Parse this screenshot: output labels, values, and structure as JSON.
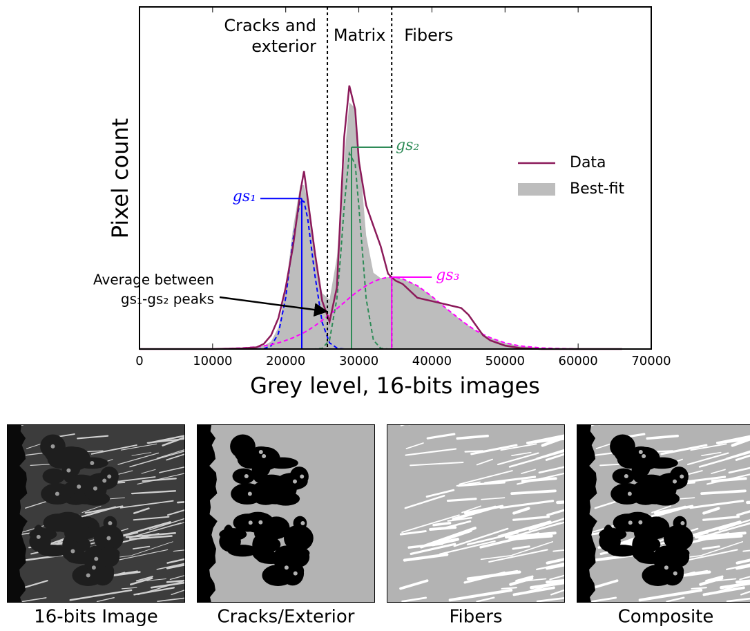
{
  "chart_data": {
    "type": "line",
    "ylabel": "Pixel count",
    "xlabel": "Grey level, 16-bits images",
    "xlim": [
      0,
      70000
    ],
    "xticks": [
      0,
      10000,
      20000,
      30000,
      40000,
      50000,
      60000,
      70000
    ],
    "ylim": [
      0,
      100
    ],
    "legend": "center right",
    "x": [
      0,
      10000,
      14000,
      16000,
      17000,
      18000,
      19000,
      20000,
      21000,
      22000,
      22500,
      23000,
      24000,
      25000,
      26000,
      27000,
      27500,
      28000,
      28700,
      29500,
      30000,
      31000,
      32000,
      33000,
      34000,
      35000,
      36000,
      38000,
      40000,
      42000,
      44000,
      45000,
      46000,
      47000,
      48000,
      50000,
      52000,
      55000,
      60000,
      66000
    ],
    "series": [
      {
        "name": "Data",
        "color": "#8b1a5a",
        "style": "line",
        "values": [
          0,
          0,
          0.2,
          0.5,
          1.5,
          4,
          9,
          18,
          30,
          46,
          52,
          44,
          28,
          14,
          8,
          18,
          40,
          62,
          77,
          70,
          55,
          42,
          36,
          30,
          22,
          20,
          19,
          15,
          14,
          13,
          12,
          10,
          7,
          4,
          2.5,
          1,
          0.3,
          0,
          0,
          0
        ]
      },
      {
        "name": "Best-fit",
        "color": "#bdbdbd",
        "style": "area",
        "values": [
          0,
          0,
          0.3,
          0.6,
          1,
          2.2,
          6.3,
          17.5,
          35.3,
          47.9,
          47.9,
          43.6,
          28.2,
          16.3,
          14.4,
          26.8,
          39.8,
          55.3,
          72.1,
          70.4,
          58.8,
          33.2,
          22.3,
          20.7,
          21,
          21,
          20.5,
          18.5,
          15.4,
          11.8,
          8.4,
          6.8,
          5.4,
          4.3,
          3.3,
          1.8,
          0.9,
          0.3,
          0,
          0
        ]
      },
      {
        "color": "#0000ff",
        "style": "dashed",
        "values": [
          0,
          0,
          0,
          0,
          0.1,
          0.9,
          4.5,
          15,
          32,
          43.6,
          43.1,
          38.2,
          21.4,
          7.7,
          1.8,
          0.3,
          0.1,
          0,
          0,
          0,
          0,
          0,
          0,
          0,
          0,
          0,
          0,
          0,
          0,
          0,
          0,
          0,
          0,
          0,
          0,
          0,
          0,
          0,
          0,
          0
        ]
      },
      {
        "color": "#2e8b57",
        "style": "dashed",
        "values": [
          0,
          0,
          0,
          0,
          0,
          0,
          0,
          0,
          0,
          0,
          0,
          0,
          0,
          0.2,
          2.6,
          14.7,
          27,
          41.7,
          57.2,
          54.1,
          41.7,
          14.7,
          2.6,
          0.2,
          0,
          0,
          0,
          0,
          0,
          0,
          0,
          0,
          0,
          0,
          0,
          0,
          0,
          0,
          0,
          0
        ]
      },
      {
        "color": "#ff00ff",
        "style": "dashed",
        "values": [
          0,
          0,
          0.3,
          0.6,
          0.9,
          1.3,
          1.8,
          2.5,
          3.3,
          4.3,
          4.8,
          5.4,
          6.8,
          8.4,
          10,
          11.8,
          12.7,
          13.6,
          14.9,
          16.3,
          17.1,
          18.5,
          19.7,
          20.5,
          21,
          21,
          20.5,
          18.5,
          15.4,
          11.8,
          8.4,
          6.8,
          5.4,
          4.3,
          3.3,
          1.8,
          0.9,
          0.3,
          0,
          0
        ]
      }
    ],
    "peaks": [
      {
        "label": "gs₁",
        "x": 22200,
        "y": 44,
        "color": "#0000ff",
        "side": "left"
      },
      {
        "label": "gs₂",
        "x": 29000,
        "y": 59,
        "color": "#2e8b57",
        "side": "right"
      },
      {
        "label": "gs₃",
        "x": 34500,
        "y": 21,
        "color": "#ff00ff",
        "side": "right"
      }
    ],
    "thresholds": [
      25700,
      34500
    ],
    "regions": [
      {
        "lines": [
          "Cracks and",
          "exterior"
        ]
      },
      {
        "lines": [
          "Matrix"
        ]
      },
      {
        "lines": [
          "Fibers"
        ]
      }
    ],
    "annotation": {
      "lines": [
        "Average between",
        "gs₁-gs₂ peaks"
      ],
      "xy": [
        25600,
        11
      ]
    },
    "panels": [
      "16-bits Image",
      "Cracks/Exterior",
      "Fibers",
      "Composite"
    ]
  }
}
